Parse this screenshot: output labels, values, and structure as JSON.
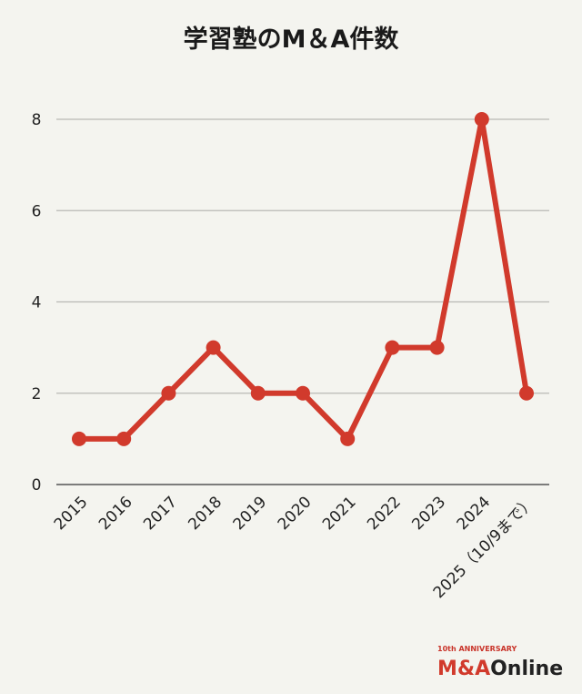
{
  "chart_data": {
    "type": "line",
    "title": "学習塾のM＆A件数",
    "categories": [
      "2015",
      "2016",
      "2017",
      "2018",
      "2019",
      "2020",
      "2021",
      "2022",
      "2023",
      "2024",
      "2025（10/9まで）"
    ],
    "series": [
      {
        "name": "件数",
        "values": [
          1,
          1,
          2,
          3,
          2,
          2,
          1,
          3,
          3,
          8,
          2
        ],
        "color": "#d13a2c"
      }
    ],
    "yticks": [
      0,
      2,
      4,
      6,
      8
    ],
    "ylim": [
      0,
      8
    ],
    "xlabel": "",
    "ylabel": "",
    "grid": true
  },
  "logo": {
    "tagline": "10th ANNIVERSARY",
    "brand_red": "M&A",
    "brand_dark": "Online",
    "red_color": "#d13a2c",
    "dark_color": "#222222"
  }
}
